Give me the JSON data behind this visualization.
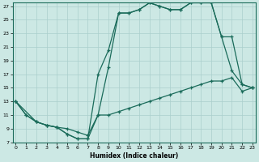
{
  "xlabel": "Humidex (Indice chaleur)",
  "xlim": [
    -0.3,
    23.3
  ],
  "ylim": [
    7,
    27.5
  ],
  "xticks": [
    0,
    1,
    2,
    3,
    4,
    5,
    6,
    7,
    8,
    9,
    10,
    11,
    12,
    13,
    14,
    15,
    16,
    17,
    18,
    19,
    20,
    21,
    22,
    23
  ],
  "yticks": [
    7,
    9,
    11,
    13,
    15,
    17,
    19,
    21,
    23,
    25,
    27
  ],
  "bg_color": "#cce8e4",
  "grid_color": "#aacfcc",
  "line_color": "#1a6b5a",
  "line1_x": [
    0,
    1,
    2,
    3,
    4,
    5,
    6,
    7,
    8,
    9,
    10,
    11,
    12,
    13,
    14,
    15,
    16,
    17,
    18,
    19,
    20,
    21,
    22,
    23
  ],
  "line1_y": [
    13,
    11,
    10,
    9.5,
    9.2,
    8.2,
    7.5,
    7.5,
    17,
    20.5,
    26,
    26,
    26.5,
    27.5,
    27,
    26.5,
    26.5,
    27.5,
    27.5,
    27.5,
    22.5,
    22.5,
    15.5,
    15
  ],
  "line2_x": [
    0,
    1,
    2,
    3,
    4,
    5,
    6,
    7,
    8,
    9,
    10,
    11,
    12,
    13,
    14,
    15,
    16,
    17,
    18,
    19,
    20,
    21,
    22,
    23
  ],
  "line2_y": [
    13,
    11,
    10,
    9.5,
    9.2,
    8.2,
    7.5,
    7.5,
    11,
    18,
    26,
    26,
    26.5,
    27.5,
    27,
    26.5,
    26.5,
    27.5,
    27.5,
    27.5,
    22.5,
    17.5,
    15.5,
    15
  ],
  "line3_x": [
    0,
    2,
    3,
    4,
    5,
    6,
    7,
    8,
    9,
    10,
    11,
    12,
    13,
    14,
    15,
    16,
    17,
    18,
    19,
    20,
    21,
    22,
    23
  ],
  "line3_y": [
    13,
    10,
    9.5,
    9.2,
    9,
    8.5,
    8,
    11,
    11,
    11.5,
    12,
    12.5,
    13,
    13.5,
    14,
    14.5,
    15,
    15.5,
    16,
    16,
    16.5,
    14.5,
    15
  ]
}
